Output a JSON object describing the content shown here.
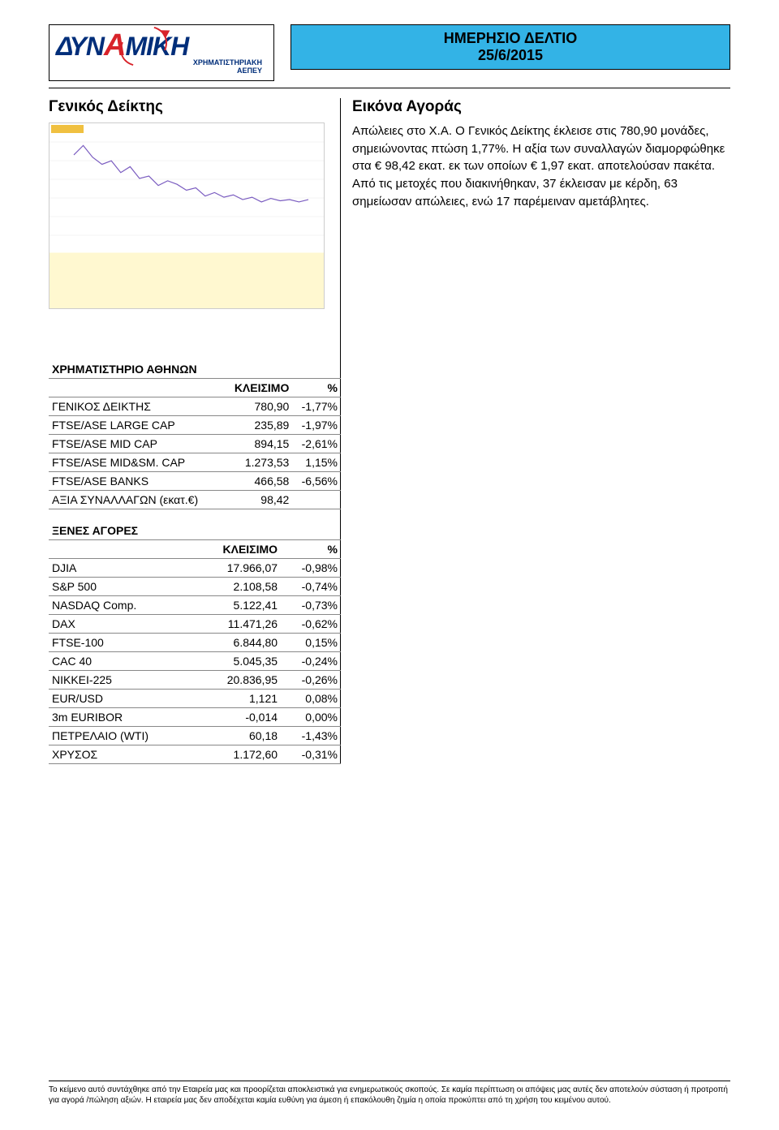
{
  "logo": {
    "name_part1": "Δ",
    "name_part2": "Υ",
    "name_part3": "Ν",
    "name_part4": "Α",
    "name_part5": "ΜΙΚΗ",
    "sub1": "ΧΡΗΜΑΤΙΣΤΗΡΙΑΚΗ",
    "sub2": "ΑΕΠΕΥ",
    "colors": {
      "blue": "#002e7a",
      "red": "#d8232a",
      "title_bg": "#33b3e6"
    }
  },
  "title": {
    "line1": "ΗΜΕΡΗΣΙΟ ΔΕΛΤΙΟ",
    "line2": "25/6/2015"
  },
  "left_heading": "Γενικός Δείκτης",
  "right_heading": "Εικόνα Αγοράς",
  "body": "Απώλειες στο Χ.Α. Ο Γενικός Δείκτης έκλεισε στις 780,90 μονάδες, σημειώνοντας πτώση 1,77%. Η αξία των συναλλαγών διαμορφώθηκε στα € 98,42 εκατ. εκ των οποίων € 1,97 εκατ. αποτελούσαν πακέτα. Από τις μετοχές που διακινήθηκαν, 37 έκλεισαν με κέρδη, 63 σημείωσαν απώλειες, ενώ 17 παρέμειναν αμετάβλητες.",
  "table1": {
    "title": "ΧΡΗΜΑΤΙΣΤΗΡΙΟ ΑΘΗΝΩΝ",
    "col_close": "ΚΛΕΙΣΙΜΟ",
    "col_pct": "%",
    "rows": [
      {
        "name": "ΓΕΝΙΚΟΣ ΔΕΙΚΤΗΣ",
        "close": "780,90",
        "pct": "-1,77%"
      },
      {
        "name": "FTSE/ASE LARGE CAP",
        "close": "235,89",
        "pct": "-1,97%"
      },
      {
        "name": "FTSE/ASE MID CAP",
        "close": "894,15",
        "pct": "-2,61%"
      },
      {
        "name": "FTSE/ASE MID&SM. CAP",
        "close": "1.273,53",
        "pct": "1,15%"
      },
      {
        "name": "FTSE/ASE BANKS",
        "close": "466,58",
        "pct": "-6,56%"
      },
      {
        "name": "ΑΞΙΑ ΣΥΝΑΛΛΑΓΩΝ (εκατ.€)",
        "close": "98,42",
        "pct": ""
      }
    ]
  },
  "table2": {
    "title": "ΞΕΝΕΣ ΑΓΟΡΕΣ",
    "col_close": "ΚΛΕΙΣΙΜΟ",
    "col_pct": "%",
    "rows": [
      {
        "name": "DJIA",
        "close": "17.966,07",
        "pct": "-0,98%"
      },
      {
        "name": "S&P 500",
        "close": "2.108,58",
        "pct": "-0,74%"
      },
      {
        "name": "NASDAQ Comp.",
        "close": "5.122,41",
        "pct": "-0,73%"
      },
      {
        "name": "DAX",
        "close": "11.471,26",
        "pct": "-0,62%"
      },
      {
        "name": "FTSE-100",
        "close": "6.844,80",
        "pct": "0,15%"
      },
      {
        "name": "CAC 40",
        "close": "5.045,35",
        "pct": "-0,24%"
      },
      {
        "name": "NIKKEI-225",
        "close": "20.836,95",
        "pct": "-0,26%"
      },
      {
        "name": "EUR/USD",
        "close": "1,121",
        "pct": "0,08%"
      },
      {
        "name": "3m EURIBOR",
        "close": "-0,014",
        "pct": "0,00%"
      },
      {
        "name": "ΠΕΤΡΕΛΑΙΟ (WTI)",
        "close": "60,18",
        "pct": "-1,43%"
      },
      {
        "name": "ΧΡΥΣΟΣ",
        "close": "1.172,60",
        "pct": "-0,31%"
      }
    ]
  },
  "chart": {
    "type": "line",
    "background_color": "#ffffff",
    "lower_band_color": "#fff8d0",
    "line_color": "#7a5cc0",
    "grid_color": "#e8e8e8",
    "points": [
      [
        0,
        0.2
      ],
      [
        0.04,
        0.12
      ],
      [
        0.08,
        0.22
      ],
      [
        0.12,
        0.28
      ],
      [
        0.16,
        0.25
      ],
      [
        0.2,
        0.35
      ],
      [
        0.24,
        0.3
      ],
      [
        0.28,
        0.4
      ],
      [
        0.32,
        0.38
      ],
      [
        0.36,
        0.46
      ],
      [
        0.4,
        0.42
      ],
      [
        0.44,
        0.45
      ],
      [
        0.48,
        0.5
      ],
      [
        0.52,
        0.48
      ],
      [
        0.56,
        0.55
      ],
      [
        0.6,
        0.52
      ],
      [
        0.64,
        0.56
      ],
      [
        0.68,
        0.54
      ],
      [
        0.72,
        0.58
      ],
      [
        0.76,
        0.56
      ],
      [
        0.8,
        0.6
      ],
      [
        0.84,
        0.57
      ],
      [
        0.88,
        0.59
      ],
      [
        0.92,
        0.58
      ],
      [
        0.96,
        0.6
      ],
      [
        1.0,
        0.58
      ]
    ]
  },
  "disclaimer": "Το κείμενο αυτό συντάχθηκε από την Εταιρεία μας και προορίζεται αποκλειστικά για ενημερωτικούς σκοπούς. Σε καμία περίπτωση οι απόψεις μας αυτές δεν αποτελούν σύσταση ή προτροπή για αγορά /πώληση αξιών. Η εταιρεία μας δεν αποδέχεται καμία ευθύνη για άμεση ή επακόλουθη ζημία η οποία προκύπτει από τη χρήση του κειμένου αυτού."
}
